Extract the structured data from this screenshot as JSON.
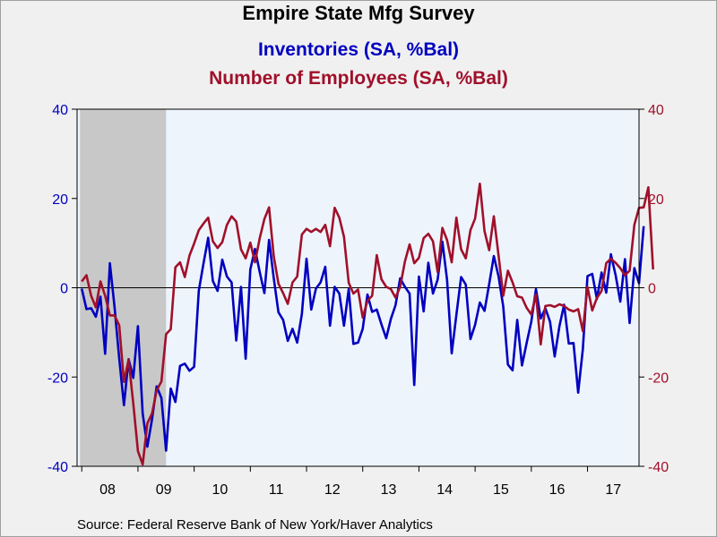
{
  "title": "Empire State Mfg Survey",
  "subtitle_1": "Inventories (SA, %Bal)",
  "subtitle_2": "Number of Employees (SA, %Bal)",
  "source": "Source:  Federal Reserve Bank of New York/Haver Analytics",
  "colors": {
    "inventories": "#0000c0",
    "employees": "#a0102a",
    "recession": "#c8c8c8",
    "plot_bg": "#eef4fc"
  },
  "chart_data": {
    "type": "line",
    "x_tick_labels": [
      "08",
      "09",
      "10",
      "11",
      "12",
      "13",
      "14",
      "15",
      "16",
      "17"
    ],
    "y_left": {
      "ticks": [
        "-40",
        "-20",
        "0",
        "20",
        "40"
      ],
      "ylim": [
        -40,
        40
      ]
    },
    "y_right": {
      "ticks": [
        "-40",
        "-20",
        "0",
        "20",
        "40"
      ],
      "ylim": [
        -40,
        40
      ]
    },
    "x_range": [
      "2007-12",
      "2017-12"
    ],
    "recession_shading": {
      "start": "2008-01",
      "end": "2009-06"
    },
    "zero_line": true,
    "series": [
      {
        "name": "Inventories (SA, %Bal)",
        "color": "#0000c0",
        "start": "2008-01",
        "values": [
          -0.2,
          -4.8,
          -4.6,
          -6.5,
          -2.0,
          -14.8,
          5.5,
          -4.3,
          -15.8,
          -26.3,
          -16.0,
          -20.2,
          -8.6,
          -28.2,
          -35.6,
          -29.5,
          -22.1,
          -24.7,
          -36.5,
          -22.6,
          -25.6,
          -17.5,
          -17.0,
          -18.6,
          -17.7,
          -0.7,
          5.5,
          11.2,
          1.5,
          -0.7,
          6.3,
          2.5,
          1.2,
          -11.8,
          0.2,
          -15.9,
          4.1,
          8.7,
          3.5,
          -1.2,
          10.7,
          2.2,
          -5.5,
          -7.2,
          -11.9,
          -9.2,
          -12.3,
          -5.9,
          6.5,
          -4.9,
          -0.2,
          1.2,
          4.7,
          -8.5,
          0.2,
          -1.3,
          -8.5,
          -0.3,
          -12.6,
          -12.3,
          -9.2,
          -1.5,
          -5.4,
          -4.9,
          -8.2,
          -11.3,
          -7.0,
          -3.9,
          2.1,
          0.2,
          -1.3,
          -21.8,
          2.5,
          -5.3,
          5.6,
          -1.3,
          1.8,
          10.3,
          1.8,
          -14.7,
          -6.1,
          2.4,
          0.7,
          -11.5,
          -8.3,
          -3.3,
          -5.2,
          0.8,
          7.1,
          2.5,
          -4.2,
          -17.2,
          -18.5,
          -7.2,
          -17.4,
          -12.4,
          -7.6,
          -0.3,
          -6.9,
          -4.6,
          -7.6,
          -15.4,
          -8.6,
          -3.8,
          -12.5,
          -12.4,
          -23.5,
          -13.8,
          2.6,
          3.1,
          -2.5,
          3.4,
          -1.1,
          7.5,
          2.8,
          -3.1,
          6.4,
          -7.9,
          4.4,
          1.0,
          13.8
        ]
      },
      {
        "name": "Number of Employees (SA, %Bal)",
        "color": "#a0102a",
        "start": "2008-01",
        "values": [
          1.4,
          2.8,
          -1.8,
          -4.4,
          1.4,
          -1.8,
          -6.2,
          -6.2,
          -8.4,
          -21.1,
          -16.1,
          -25.9,
          -36.6,
          -39.6,
          -30.4,
          -28.2,
          -23.0,
          -21.0,
          -10.4,
          -9.3,
          4.6,
          5.7,
          2.4,
          7.2,
          9.9,
          12.9,
          14.4,
          15.7,
          10.4,
          8.9,
          10.2,
          14.1,
          16.0,
          14.8,
          8.6,
          6.6,
          10.1,
          5.7,
          11.1,
          15.4,
          18.0,
          7.1,
          0.9,
          -1.2,
          -3.6,
          1.2,
          2.5,
          11.9,
          13.2,
          12.5,
          13.2,
          12.5,
          14.1,
          9.3,
          17.9,
          15.7,
          11.4,
          1.1,
          -1.3,
          -0.4,
          -6.7,
          -2.9,
          -1.8,
          7.3,
          1.9,
          0.2,
          -0.3,
          -2.2,
          0.2,
          5.9,
          9.7,
          5.5,
          6.7,
          11.1,
          12.1,
          10.4,
          3.5,
          13.4,
          10.7,
          5.7,
          15.7,
          8.6,
          6.6,
          12.9,
          15.5,
          23.3,
          12.7,
          8.4,
          16.0,
          7.2,
          -1.8,
          3.8,
          1.2,
          -1.9,
          -2.2,
          -4.5,
          -6.0,
          -1.5,
          -12.7,
          -4.1,
          -3.9,
          -4.3,
          -3.7,
          -4.1,
          -4.9,
          -5.3,
          -4.8,
          -9.7,
          0.2,
          -5.1,
          -2.3,
          -0.7,
          5.5,
          6.5,
          5.6,
          4.4,
          2.8,
          3.8,
          14.1,
          17.9,
          18.0,
          22.5,
          4.1
        ]
      }
    ]
  }
}
